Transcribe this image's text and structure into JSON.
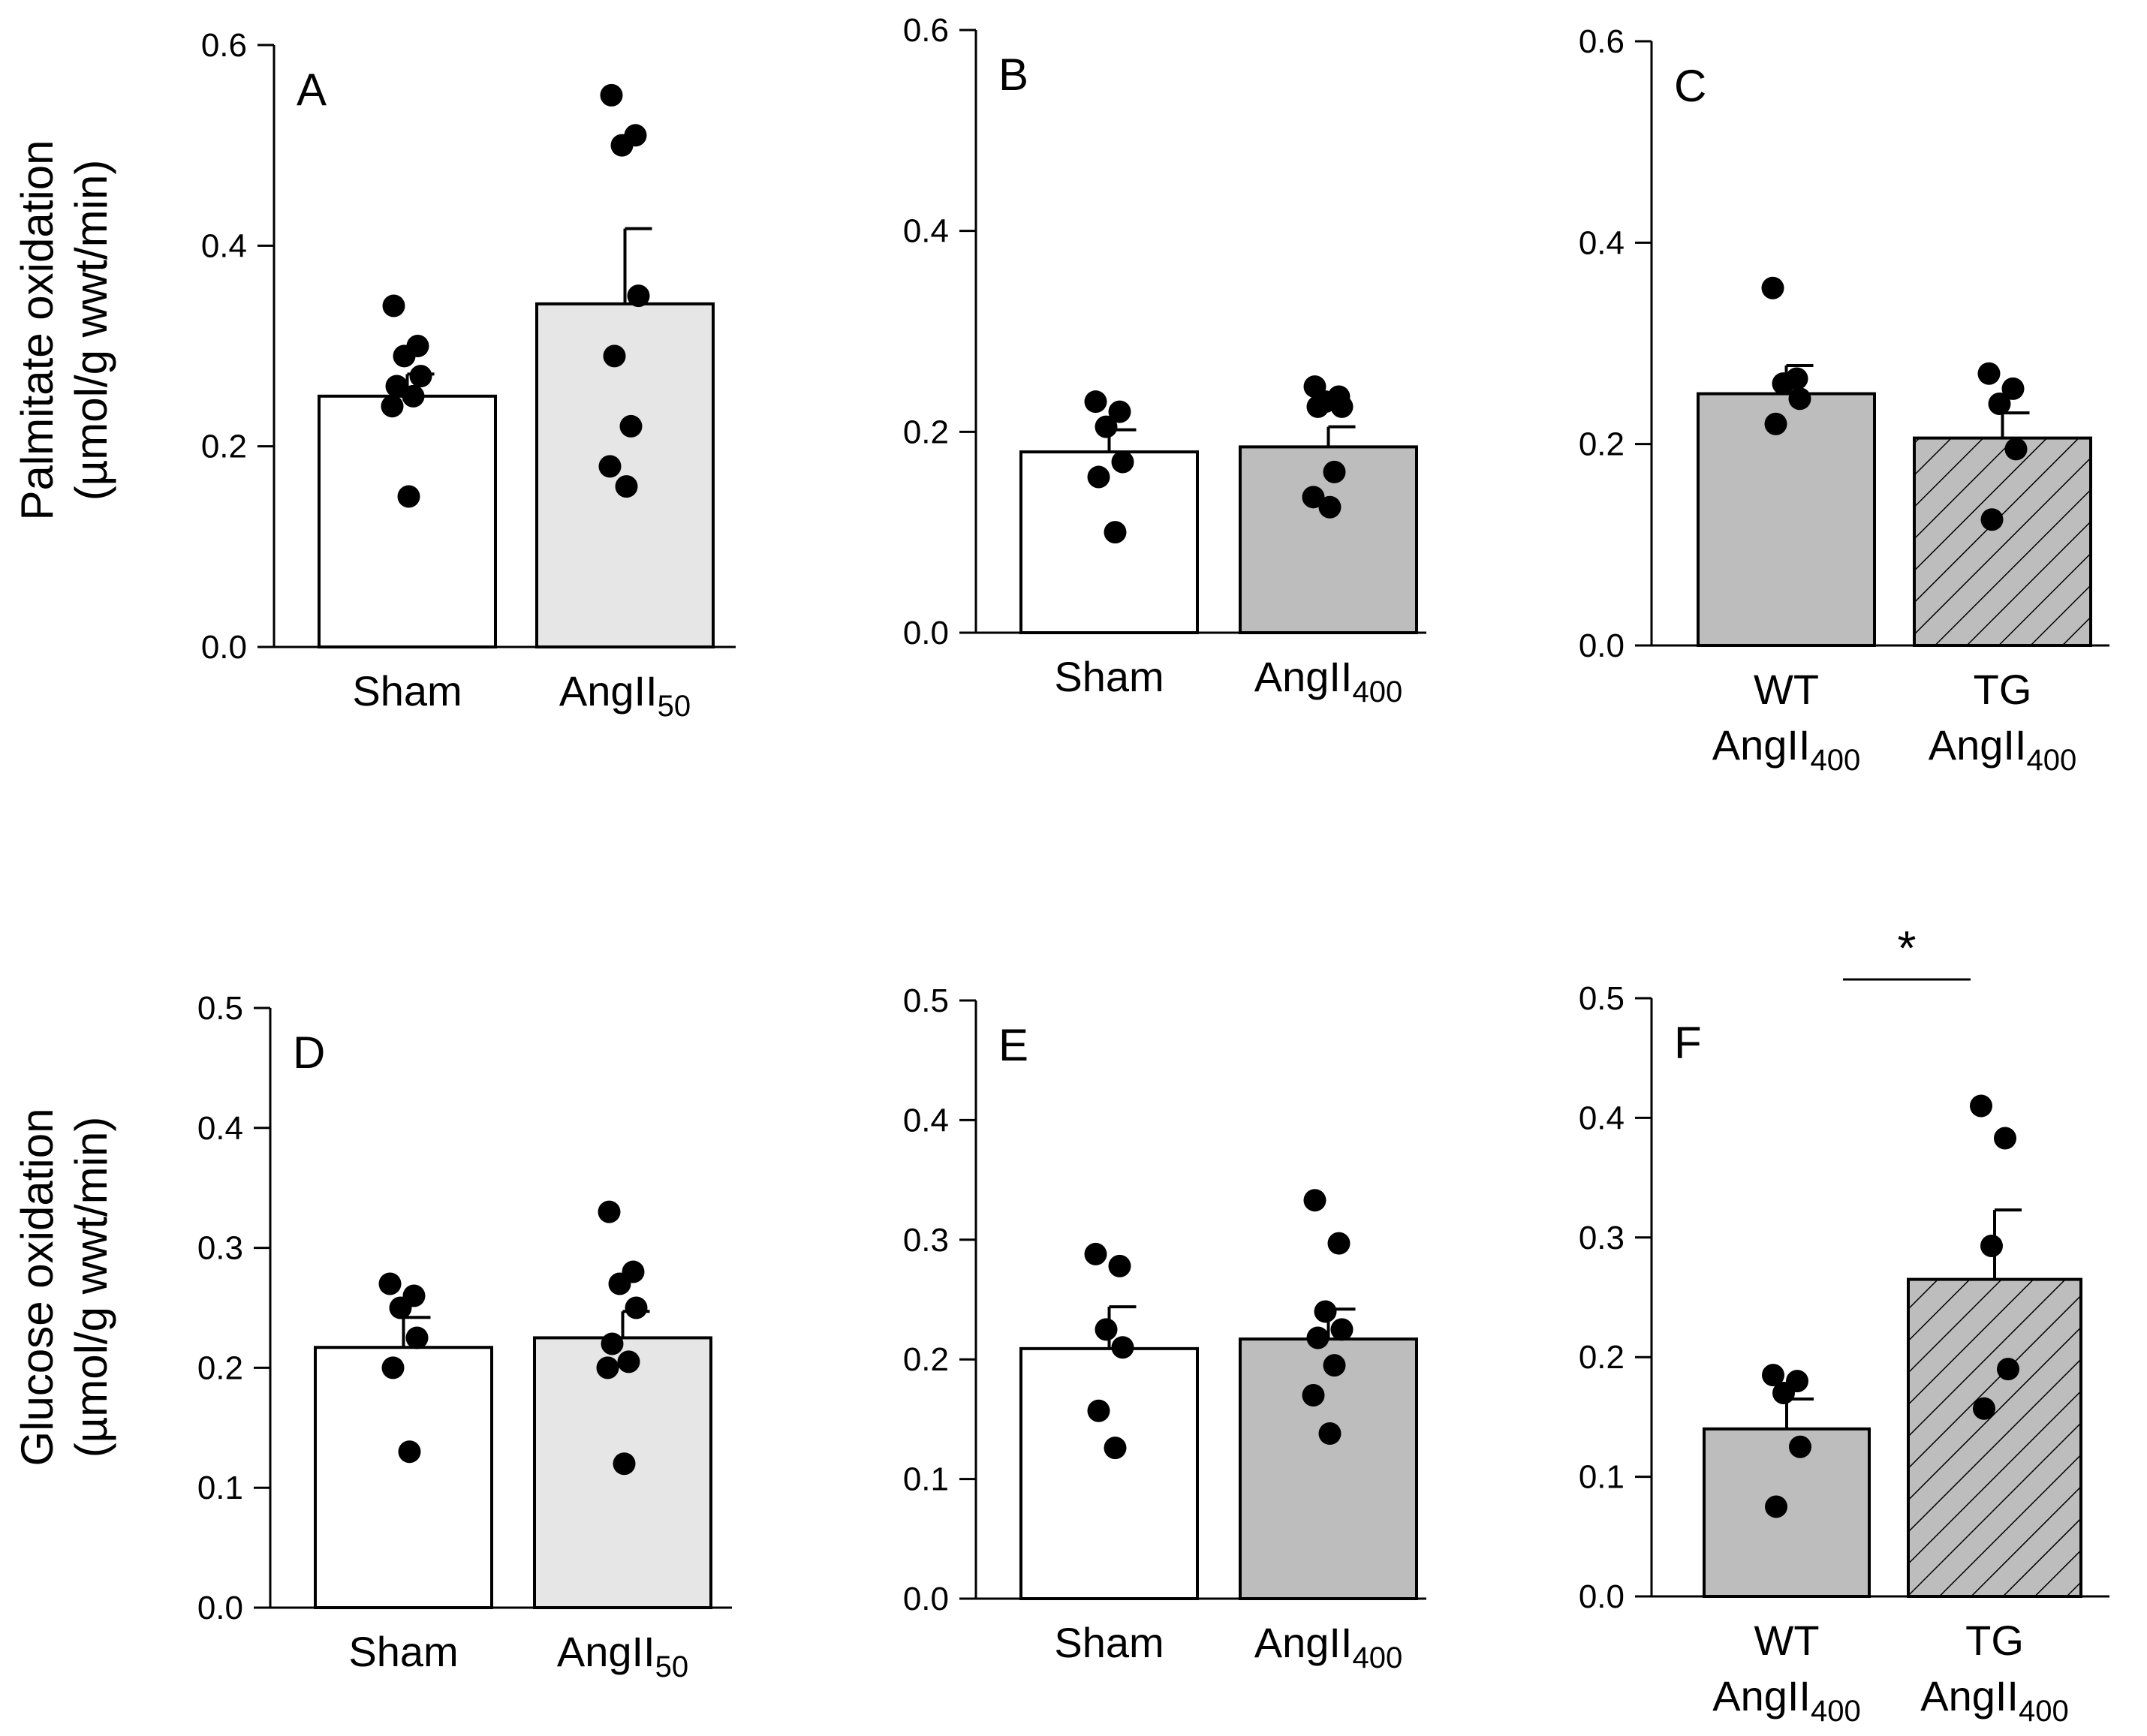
{
  "colors": {
    "white": "#ffffff",
    "light_gray": "#e6e6e6",
    "gray": "#bdbdbd",
    "ink": "#000000"
  },
  "y_labels": {
    "top": {
      "line1": "Palmitate oxidation",
      "line2": "(µmol/g wwt/min)"
    },
    "bottom": {
      "line1": "Glucose oxidation",
      "line2": "(µmol/g wwt/min)"
    }
  },
  "chart_data": [
    {
      "type": "bar",
      "panel": "A",
      "ylim": [
        0,
        0.6
      ],
      "yticks": [
        "0.0",
        "0.2",
        "0.4",
        "0.6"
      ],
      "categories": [
        {
          "lines": [
            {
              "main": "Sham",
              "sub": ""
            }
          ]
        },
        {
          "lines": [
            {
              "main": "AngII",
              "sub": "50"
            }
          ]
        }
      ],
      "values": [
        0.25,
        0.342
      ],
      "errors": [
        0.022,
        0.075
      ],
      "fills": [
        "white",
        "light_gray"
      ],
      "hatch": [
        false,
        false
      ],
      "points": [
        [
          0.34,
          0.3,
          0.29,
          0.27,
          0.26,
          0.25,
          0.24,
          0.15
        ],
        [
          0.55,
          0.51,
          0.5,
          0.35,
          0.29,
          0.22,
          0.18,
          0.16
        ]
      ]
    },
    {
      "type": "bar",
      "panel": "B",
      "ylim": [
        0,
        0.6
      ],
      "yticks": [
        "0.0",
        "0.2",
        "0.4",
        "0.6"
      ],
      "categories": [
        {
          "lines": [
            {
              "main": "Sham",
              "sub": ""
            }
          ]
        },
        {
          "lines": [
            {
              "main": "AngII",
              "sub": "400"
            }
          ]
        }
      ],
      "values": [
        0.18,
        0.185
      ],
      "errors": [
        0.022,
        0.02
      ],
      "fills": [
        "white",
        "gray"
      ],
      "hatch": [
        false,
        false
      ],
      "points": [
        [
          0.23,
          0.22,
          0.205,
          0.17,
          0.155,
          0.1
        ],
        [
          0.245,
          0.235,
          0.23,
          0.225,
          0.225,
          0.16,
          0.135,
          0.125
        ]
      ]
    },
    {
      "type": "bar",
      "panel": "C",
      "ylim": [
        0,
        0.6
      ],
      "yticks": [
        "0.0",
        "0.2",
        "0.4",
        "0.6"
      ],
      "categories": [
        {
          "lines": [
            {
              "main": "WT",
              "sub": ""
            },
            {
              "main": "AngII",
              "sub": "400"
            }
          ]
        },
        {
          "lines": [
            {
              "main": "TG",
              "sub": ""
            },
            {
              "main": "AngII",
              "sub": "400"
            }
          ]
        }
      ],
      "values": [
        0.25,
        0.206
      ],
      "errors": [
        0.028,
        0.025
      ],
      "fills": [
        "gray",
        "gray"
      ],
      "hatch": [
        false,
        true
      ],
      "points": [
        [
          0.355,
          0.265,
          0.26,
          0.245,
          0.22
        ],
        [
          0.27,
          0.255,
          0.24,
          0.195,
          0.125
        ]
      ]
    },
    {
      "type": "bar",
      "panel": "D",
      "ylim": [
        0,
        0.5
      ],
      "yticks": [
        "0.0",
        "0.1",
        "0.2",
        "0.3",
        "0.4",
        "0.5"
      ],
      "categories": [
        {
          "lines": [
            {
              "main": "Sham",
              "sub": ""
            }
          ]
        },
        {
          "lines": [
            {
              "main": "AngII",
              "sub": "50"
            }
          ]
        }
      ],
      "values": [
        0.217,
        0.225
      ],
      "errors": [
        0.025,
        0.022
      ],
      "fills": [
        "white",
        "light_gray"
      ],
      "hatch": [
        false,
        false
      ],
      "points": [
        [
          0.27,
          0.26,
          0.25,
          0.225,
          0.2,
          0.13
        ],
        [
          0.33,
          0.28,
          0.27,
          0.25,
          0.22,
          0.205,
          0.2,
          0.12
        ]
      ]
    },
    {
      "type": "bar",
      "panel": "E",
      "ylim": [
        0,
        0.5
      ],
      "yticks": [
        "0.0",
        "0.1",
        "0.2",
        "0.3",
        "0.4",
        "0.5"
      ],
      "categories": [
        {
          "lines": [
            {
              "main": "Sham",
              "sub": ""
            }
          ]
        },
        {
          "lines": [
            {
              "main": "AngII",
              "sub": "400"
            }
          ]
        }
      ],
      "values": [
        0.209,
        0.217
      ],
      "errors": [
        0.035,
        0.025
      ],
      "fills": [
        "white",
        "gray"
      ],
      "hatch": [
        false,
        false
      ],
      "points": [
        [
          0.288,
          0.278,
          0.225,
          0.21,
          0.157,
          0.126
        ],
        [
          0.333,
          0.297,
          0.24,
          0.225,
          0.218,
          0.195,
          0.17,
          0.138
        ]
      ]
    },
    {
      "type": "bar",
      "panel": "F",
      "ylim": [
        0,
        0.5
      ],
      "yticks": [
        "0.0",
        "0.1",
        "0.2",
        "0.3",
        "0.4",
        "0.5"
      ],
      "categories": [
        {
          "lines": [
            {
              "main": "WT",
              "sub": ""
            },
            {
              "main": "AngII",
              "sub": "400"
            }
          ]
        },
        {
          "lines": [
            {
              "main": "TG",
              "sub": ""
            },
            {
              "main": "AngII",
              "sub": "400"
            }
          ]
        }
      ],
      "values": [
        0.14,
        0.265
      ],
      "errors": [
        0.025,
        0.058
      ],
      "fills": [
        "gray",
        "gray"
      ],
      "hatch": [
        false,
        true
      ],
      "points": [
        [
          0.185,
          0.18,
          0.17,
          0.125,
          0.075
        ],
        [
          0.41,
          0.383,
          0.293,
          0.19,
          0.157
        ]
      ],
      "significance": {
        "symbol": "*"
      }
    }
  ]
}
